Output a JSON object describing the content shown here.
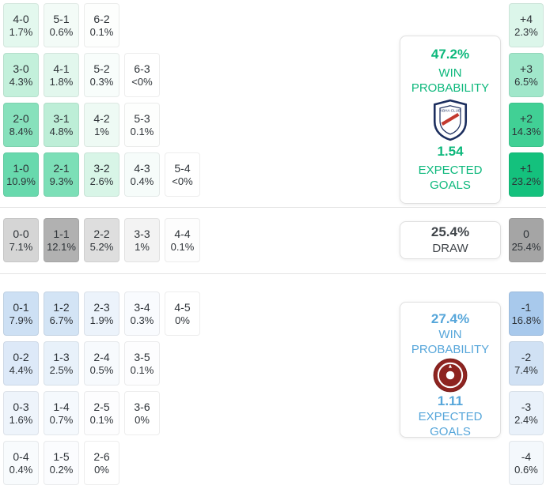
{
  "accents": {
    "home": "#0db87c",
    "away": "#56a6da",
    "draw_text": "#41464b"
  },
  "icons": {
    "home_badge": "abha-club-crest-icon",
    "away_badge": "maroon-round-club-crest-icon"
  },
  "home": {
    "panel": {
      "win_pct": "47.2%",
      "win_label_1": "WIN",
      "win_label_2": "PROBABILITY",
      "xg": "1.54",
      "xg_label_1": "EXPECTED",
      "xg_label_2": "GOALS"
    },
    "rows": [
      [
        {
          "s": "4-0",
          "p": "1.7%",
          "bg": "#e3f8ee"
        },
        {
          "s": "5-1",
          "p": "0.6%",
          "bg": "#f3fbf7"
        },
        {
          "s": "6-2",
          "p": "0.1%",
          "bg": "#fdfefd"
        }
      ],
      [
        {
          "s": "3-0",
          "p": "4.3%",
          "bg": "#c3f0db"
        },
        {
          "s": "4-1",
          "p": "1.8%",
          "bg": "#e2f7ed"
        },
        {
          "s": "5-2",
          "p": "0.3%",
          "bg": "#f8fdfb"
        },
        {
          "s": "6-3",
          "p": "<0%",
          "bg": "#ffffff"
        }
      ],
      [
        {
          "s": "2-0",
          "p": "8.4%",
          "bg": "#87e1bc"
        },
        {
          "s": "3-1",
          "p": "4.8%",
          "bg": "#bdeed7"
        },
        {
          "s": "4-2",
          "p": "1%",
          "bg": "#eefaf4"
        },
        {
          "s": "5-3",
          "p": "0.1%",
          "bg": "#fdfefd"
        }
      ],
      [
        {
          "s": "1-0",
          "p": "10.9%",
          "bg": "#68d9ad"
        },
        {
          "s": "2-1",
          "p": "9.3%",
          "bg": "#7cdfb7"
        },
        {
          "s": "3-2",
          "p": "2.6%",
          "bg": "#d8f5e7"
        },
        {
          "s": "4-3",
          "p": "0.4%",
          "bg": "#f6fcfa"
        },
        {
          "s": "5-4",
          "p": "<0%",
          "bg": "#ffffff"
        }
      ]
    ],
    "diffs": [
      {
        "s": "+4",
        "p": "2.3%",
        "bg": "#dcf6ea"
      },
      {
        "s": "+3",
        "p": "6.5%",
        "bg": "#a0e7ca"
      },
      {
        "s": "+2",
        "p": "14.3%",
        "bg": "#41d095"
      },
      {
        "s": "+1",
        "p": "23.2%",
        "bg": "#14c17d"
      }
    ]
  },
  "draw": {
    "panel": {
      "pct": "25.4%",
      "label": "DRAW"
    },
    "rows": [
      [
        {
          "s": "0-0",
          "p": "7.1%",
          "bg": "#d5d5d5"
        },
        {
          "s": "1-1",
          "p": "12.1%",
          "bg": "#b1b1b1"
        },
        {
          "s": "2-2",
          "p": "5.2%",
          "bg": "#dedede"
        },
        {
          "s": "3-3",
          "p": "1%",
          "bg": "#f3f3f3"
        },
        {
          "s": "4-4",
          "p": "0.1%",
          "bg": "#fdfdfd"
        }
      ]
    ],
    "diffs": [
      {
        "s": "0",
        "p": "25.4%",
        "bg": "#a5a5a5"
      }
    ]
  },
  "away": {
    "panel": {
      "win_pct": "27.4%",
      "win_label_1": "WIN",
      "win_label_2": "PROBABILITY",
      "xg": "1.11",
      "xg_label_1": "EXPECTED",
      "xg_label_2": "GOALS"
    },
    "rows": [
      [
        {
          "s": "0-1",
          "p": "7.9%",
          "bg": "#cde0f4"
        },
        {
          "s": "1-2",
          "p": "6.7%",
          "bg": "#d3e4f5"
        },
        {
          "s": "2-3",
          "p": "1.9%",
          "bg": "#ecf3fb"
        },
        {
          "s": "3-4",
          "p": "0.3%",
          "bg": "#f9fbfe"
        },
        {
          "s": "4-5",
          "p": "0%",
          "bg": "#ffffff"
        }
      ],
      [
        {
          "s": "0-2",
          "p": "4.4%",
          "bg": "#dde9f8"
        },
        {
          "s": "1-3",
          "p": "2.5%",
          "bg": "#e8f1fa"
        },
        {
          "s": "2-4",
          "p": "0.5%",
          "bg": "#f7fafd"
        },
        {
          "s": "3-5",
          "p": "0.1%",
          "bg": "#fdfdfe"
        }
      ],
      [
        {
          "s": "0-3",
          "p": "1.6%",
          "bg": "#eef4fb"
        },
        {
          "s": "1-4",
          "p": "0.7%",
          "bg": "#f5f9fd"
        },
        {
          "s": "2-5",
          "p": "0.1%",
          "bg": "#fdfdfe"
        },
        {
          "s": "3-6",
          "p": "0%",
          "bg": "#ffffff"
        }
      ],
      [
        {
          "s": "0-4",
          "p": "0.4%",
          "bg": "#f8fbfd"
        },
        {
          "s": "1-5",
          "p": "0.2%",
          "bg": "#fbfcfe"
        },
        {
          "s": "2-6",
          "p": "0%",
          "bg": "#ffffff"
        }
      ]
    ],
    "diffs": [
      {
        "s": "-1",
        "p": "16.8%",
        "bg": "#a8c9ec"
      },
      {
        "s": "-2",
        "p": "7.4%",
        "bg": "#d0e1f4"
      },
      {
        "s": "-3",
        "p": "2.4%",
        "bg": "#e9f1fa"
      },
      {
        "s": "-4",
        "p": "0.6%",
        "bg": "#f4f8fc"
      }
    ]
  },
  "chart_data": {
    "type": "heatmap",
    "title": "Correct score probability matrix with win/draw/loss probabilities and expected goals",
    "home_win": {
      "probability_pct": 47.2,
      "expected_goals": 1.54,
      "score_probabilities": {
        "4-0": 1.7,
        "5-1": 0.6,
        "6-2": 0.1,
        "3-0": 4.3,
        "4-1": 1.8,
        "5-2": 0.3,
        "6-3": 0,
        "2-0": 8.4,
        "3-1": 4.8,
        "4-2": 1,
        "5-3": 0.1,
        "1-0": 10.9,
        "2-1": 9.3,
        "3-2": 2.6,
        "4-3": 0.4,
        "5-4": 0
      },
      "goal_difference_probabilities": {
        "+4": 2.3,
        "+3": 6.5,
        "+2": 14.3,
        "+1": 23.2
      }
    },
    "draw": {
      "probability_pct": 25.4,
      "score_probabilities": {
        "0-0": 7.1,
        "1-1": 12.1,
        "2-2": 5.2,
        "3-3": 1,
        "4-4": 0.1
      },
      "goal_difference_probabilities": {
        "0": 25.4
      }
    },
    "away_win": {
      "probability_pct": 27.4,
      "expected_goals": 1.11,
      "score_probabilities": {
        "0-1": 7.9,
        "1-2": 6.7,
        "2-3": 1.9,
        "3-4": 0.3,
        "4-5": 0,
        "0-2": 4.4,
        "1-3": 2.5,
        "2-4": 0.5,
        "3-5": 0.1,
        "0-3": 1.6,
        "1-4": 0.7,
        "2-5": 0.1,
        "3-6": 0,
        "0-4": 0.4,
        "1-5": 0.2,
        "2-6": 0
      },
      "goal_difference_probabilities": {
        "-1": 16.8,
        "-2": 7.4,
        "-3": 2.4,
        "-4": 0.6
      }
    }
  }
}
